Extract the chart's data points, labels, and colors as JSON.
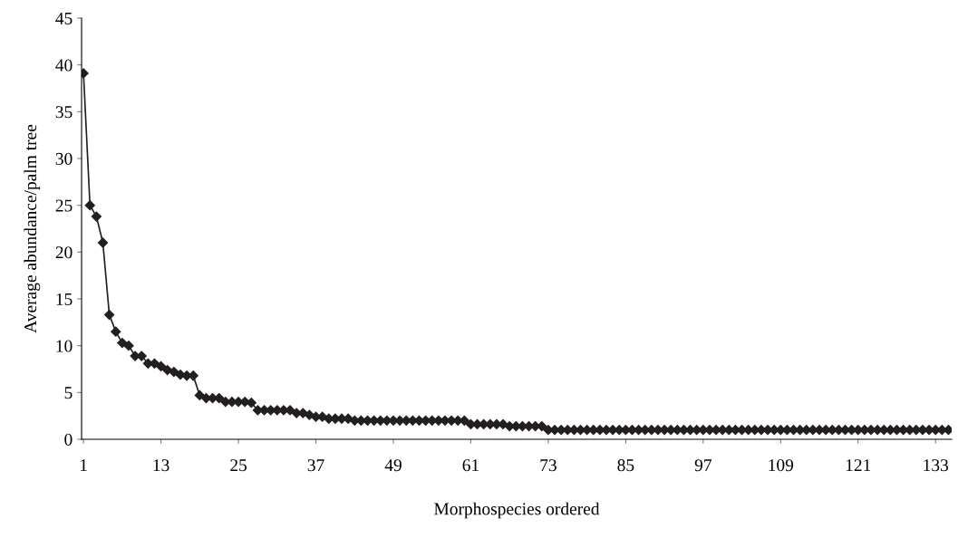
{
  "chart_data": {
    "type": "line",
    "xlabel": "Morphospecies ordered",
    "ylabel": "Average abundance/palm tree",
    "categories": [
      "1",
      null,
      null,
      null,
      null,
      null,
      null,
      null,
      null,
      null,
      null,
      null,
      "13",
      null,
      null,
      null,
      null,
      null,
      null,
      null,
      null,
      null,
      null,
      null,
      "25",
      null,
      null,
      null,
      null,
      null,
      null,
      null,
      null,
      null,
      null,
      null,
      "37",
      null,
      null,
      null,
      null,
      null,
      null,
      null,
      null,
      null,
      null,
      null,
      "49",
      null,
      null,
      null,
      null,
      null,
      null,
      null,
      null,
      null,
      null,
      null,
      "61",
      null,
      null,
      null,
      null,
      null,
      null,
      null,
      null,
      null,
      null,
      null,
      "73",
      null,
      null,
      null,
      null,
      null,
      null,
      null,
      null,
      null,
      null,
      null,
      "85",
      null,
      null,
      null,
      null,
      null,
      null,
      null,
      null,
      null,
      null,
      null,
      "97",
      null,
      null,
      null,
      null,
      null,
      null,
      null,
      null,
      null,
      null,
      null,
      "109",
      null,
      null,
      null,
      null,
      null,
      null,
      null,
      null,
      null,
      null,
      null,
      "121",
      null,
      null,
      null,
      null,
      null,
      null,
      null,
      null,
      null,
      null,
      null,
      "133",
      null,
      null
    ],
    "series": [
      {
        "color": "#231f20",
        "values": [
          39.1,
          25,
          23.8,
          21,
          13.3,
          11.5,
          10.3,
          10,
          8.9,
          8.9,
          8.1,
          8.1,
          7.8,
          7.4,
          7.2,
          6.9,
          6.8,
          6.8,
          4.7,
          4.4,
          4.4,
          4.4,
          4,
          4,
          4,
          4,
          3.9,
          3.1,
          3.1,
          3.1,
          3.1,
          3.1,
          3.1,
          2.8,
          2.8,
          2.6,
          2.4,
          2.4,
          2.2,
          2.2,
          2.2,
          2.2,
          2,
          2,
          2,
          2,
          2,
          2,
          2,
          2,
          2,
          2,
          2,
          2,
          2,
          2,
          2,
          2,
          2,
          2,
          1.6,
          1.6,
          1.6,
          1.6,
          1.6,
          1.6,
          1.4,
          1.4,
          1.4,
          1.4,
          1.4,
          1.4,
          1,
          1,
          1,
          1,
          1,
          1,
          1,
          1,
          1,
          1,
          1,
          1,
          1,
          1,
          1,
          1,
          1,
          1,
          1,
          1,
          1,
          1,
          1,
          1,
          1,
          1,
          1,
          1,
          1,
          1,
          1,
          1,
          1,
          1,
          1,
          1,
          1,
          1,
          1,
          1,
          1,
          1,
          1,
          1,
          1,
          1,
          1,
          1,
          1,
          1,
          1,
          1,
          1,
          1,
          1,
          1,
          1,
          1,
          1,
          1,
          1,
          1,
          1
        ]
      }
    ],
    "ylim": [
      0,
      45
    ],
    "yticks": [
      0,
      5,
      10,
      15,
      20,
      25,
      30,
      35,
      40,
      45
    ],
    "grid": false,
    "legend": false,
    "marker": "diamond",
    "line_style": "solid"
  }
}
